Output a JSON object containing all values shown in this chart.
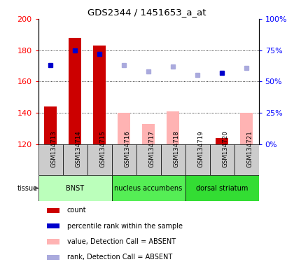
{
  "title": "GDS2344 / 1451653_a_at",
  "samples": [
    "GSM134713",
    "GSM134714",
    "GSM134715",
    "GSM134716",
    "GSM134717",
    "GSM134718",
    "GSM134719",
    "GSM134720",
    "GSM134721"
  ],
  "bar_values": [
    144,
    188,
    183,
    140,
    133,
    141,
    120,
    124,
    140
  ],
  "bar_colors": [
    "#cc0000",
    "#cc0000",
    "#cc0000",
    "#ffb3b3",
    "#ffb3b3",
    "#ffb3b3",
    "#ffb3b3",
    "#cc0000",
    "#ffb3b3"
  ],
  "rank_values": [
    63,
    75,
    72,
    63,
    58,
    62,
    55,
    57,
    61
  ],
  "rank_colors": [
    "#0000cc",
    "#0000cc",
    "#0000cc",
    "#aaaadd",
    "#aaaadd",
    "#aaaadd",
    "#aaaadd",
    "#0000cc",
    "#aaaadd"
  ],
  "ylim_left": [
    120,
    200
  ],
  "ylim_right": [
    0,
    100
  ],
  "yticks_left": [
    120,
    140,
    160,
    180,
    200
  ],
  "ytick_labels_left": [
    "120",
    "140",
    "160",
    "180",
    "200"
  ],
  "yticks_right": [
    0,
    25,
    50,
    75,
    100
  ],
  "ytick_labels_right": [
    "0%",
    "25%",
    "50%",
    "75%",
    "100%"
  ],
  "tissue_groups": [
    {
      "label": "BNST",
      "start": 0,
      "end": 3,
      "color": "#bbffbb"
    },
    {
      "label": "nucleus accumbens",
      "start": 3,
      "end": 6,
      "color": "#55ee55"
    },
    {
      "label": "dorsal striatum",
      "start": 6,
      "end": 9,
      "color": "#33dd33"
    }
  ],
  "legend_items": [
    {
      "color": "#cc0000",
      "label": "count"
    },
    {
      "color": "#0000cc",
      "label": "percentile rank within the sample"
    },
    {
      "color": "#ffb3b3",
      "label": "value, Detection Call = ABSENT"
    },
    {
      "color": "#aaaadd",
      "label": "rank, Detection Call = ABSENT"
    }
  ],
  "grid_lines": [
    140,
    160,
    180
  ],
  "bar_width": 0.5,
  "sample_box_color": "#cccccc",
  "tissue_label": "tissue"
}
